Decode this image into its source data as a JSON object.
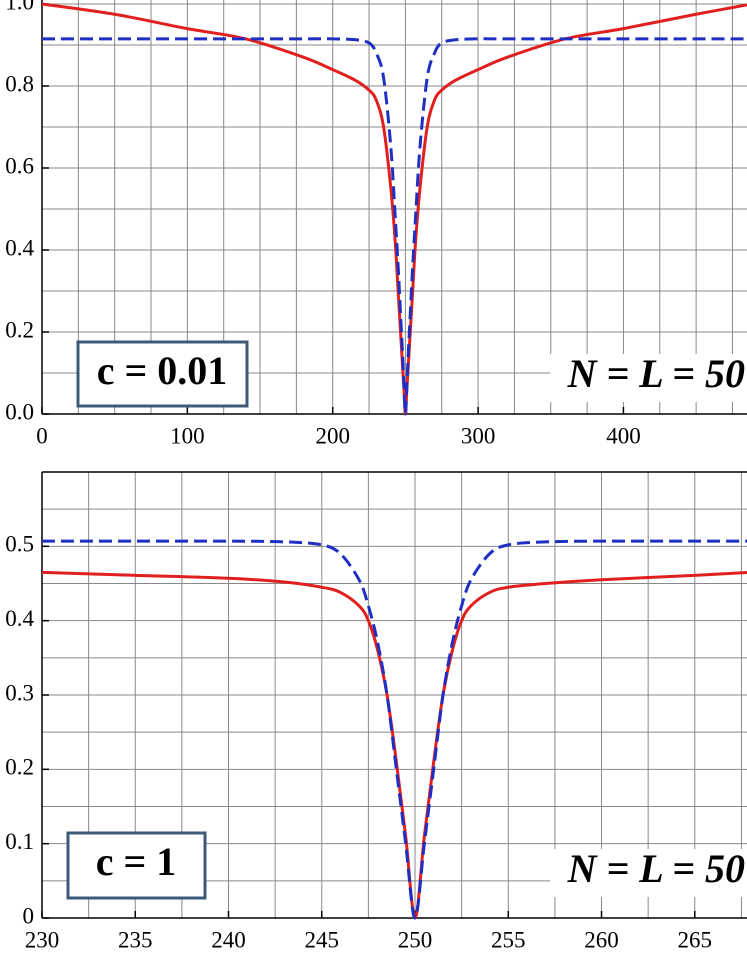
{
  "chart_data": [
    {
      "type": "line",
      "x": [
        0,
        50,
        100,
        140,
        180,
        200,
        215,
        225,
        230,
        235,
        240,
        243,
        245,
        247,
        248,
        249,
        250,
        251,
        252,
        253,
        255,
        257,
        260,
        265,
        270,
        275,
        285,
        300,
        320,
        360,
        400,
        450,
        485
      ],
      "series": [
        {
          "color": "#e0201e",
          "values": [
            1.0,
            0.975,
            0.94,
            0.915,
            0.87,
            0.84,
            0.815,
            0.79,
            0.765,
            0.7,
            0.55,
            0.42,
            0.3,
            0.18,
            0.12,
            0.06,
            0,
            0.06,
            0.12,
            0.18,
            0.3,
            0.42,
            0.55,
            0.7,
            0.765,
            0.79,
            0.815,
            0.84,
            0.87,
            0.915,
            0.94,
            0.975,
            0.998
          ],
          "dash": false
        },
        {
          "color": "#1f2fc4",
          "values": [
            0.915,
            0.915,
            0.915,
            0.915,
            0.915,
            0.915,
            0.913,
            0.905,
            0.88,
            0.82,
            0.65,
            0.48,
            0.36,
            0.22,
            0.15,
            0.07,
            0,
            0.07,
            0.15,
            0.22,
            0.36,
            0.48,
            0.65,
            0.82,
            0.88,
            0.905,
            0.913,
            0.915,
            0.915,
            0.915,
            0.915,
            0.915,
            0.915
          ],
          "dash": true
        }
      ],
      "xlim": [
        0,
        485
      ],
      "ylim": [
        0,
        1.0
      ],
      "xticks": [
        0,
        100,
        200,
        300,
        400
      ],
      "yticks": [
        {
          "value": 0,
          "label": "0.0"
        },
        0.2,
        0.4,
        0.6,
        0.8,
        {
          "value": 1,
          "label": "1.0"
        }
      ],
      "xgrid": [
        0,
        25,
        50,
        75,
        100,
        125,
        150,
        175,
        200,
        225,
        250,
        275,
        300,
        325,
        350,
        375,
        400,
        425,
        450,
        475
      ],
      "ygrid": [
        0,
        0.1,
        0.2,
        0.3,
        0.4,
        0.5,
        0.6,
        0.7,
        0.8,
        0.9,
        1.0
      ],
      "annotations": [
        "c = 0.01",
        "N = L = 50"
      ]
    },
    {
      "type": "line",
      "x": [
        230,
        235,
        240,
        243,
        245,
        246,
        247,
        247.5,
        248,
        248.5,
        249,
        249.5,
        250,
        250.5,
        251,
        251.5,
        252,
        252.5,
        253,
        254,
        255,
        257,
        260,
        265,
        268
      ],
      "series": [
        {
          "color": "#e0201e",
          "values": [
            0.465,
            0.461,
            0.457,
            0.452,
            0.445,
            0.438,
            0.42,
            0.4,
            0.36,
            0.3,
            0.21,
            0.11,
            0,
            0.11,
            0.21,
            0.3,
            0.36,
            0.4,
            0.42,
            0.438,
            0.445,
            0.45,
            0.455,
            0.461,
            0.465
          ],
          "dash": false
        },
        {
          "color": "#1f2fc4",
          "values": [
            0.507,
            0.507,
            0.507,
            0.506,
            0.502,
            0.49,
            0.455,
            0.42,
            0.37,
            0.3,
            0.2,
            0.1,
            0,
            0.1,
            0.2,
            0.3,
            0.37,
            0.42,
            0.455,
            0.49,
            0.502,
            0.506,
            0.507,
            0.507,
            0.507
          ],
          "dash": true
        }
      ],
      "xlim": [
        230,
        267.8
      ],
      "ylim": [
        0,
        0.6
      ],
      "xticks": [
        230,
        235,
        240,
        245,
        250,
        255,
        260,
        265
      ],
      "yticks": [
        0,
        0.1,
        0.2,
        0.3,
        0.4,
        0.5
      ],
      "xgrid": [
        230,
        232.5,
        235,
        237.5,
        240,
        242.5,
        245,
        247.5,
        250,
        252.5,
        255,
        257.5,
        260,
        262.5,
        265,
        267.5
      ],
      "ygrid": [
        0,
        0.05,
        0.1,
        0.15,
        0.2,
        0.25,
        0.3,
        0.35,
        0.4,
        0.45,
        0.5,
        0.55,
        0.6
      ],
      "annotations": [
        "c = 1",
        "N = L = 50"
      ]
    }
  ]
}
